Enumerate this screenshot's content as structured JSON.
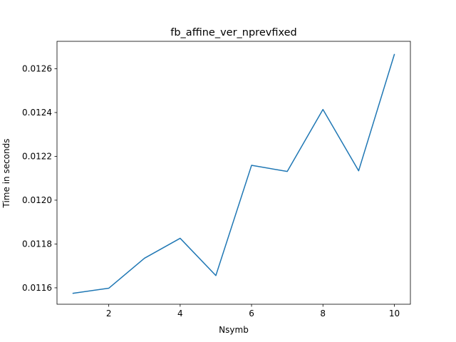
{
  "chart_data": {
    "type": "line",
    "title": "fb_affine_ver_nprevfixed",
    "xlabel": "Nsymb",
    "ylabel": "Time in seconds",
    "xlim": [
      0.55,
      10.45
    ],
    "ylim": [
      0.011525,
      0.012725
    ],
    "xticks": [
      2,
      4,
      6,
      8,
      10
    ],
    "yticks": [
      0.0116,
      0.0118,
      0.012,
      0.0122,
      0.0124,
      0.0126
    ],
    "ytick_labels": [
      "0.0116",
      "0.0118",
      "0.0120",
      "0.0122",
      "0.0124",
      "0.0126"
    ],
    "grid": false,
    "series": [
      {
        "color": "#1f77b4",
        "x": [
          1,
          2,
          3,
          4,
          5,
          6,
          7,
          8,
          9,
          10
        ],
        "y": [
          0.011575,
          0.011598,
          0.011735,
          0.011826,
          0.011656,
          0.012159,
          0.012131,
          0.012414,
          0.012134,
          0.012665
        ]
      }
    ]
  }
}
